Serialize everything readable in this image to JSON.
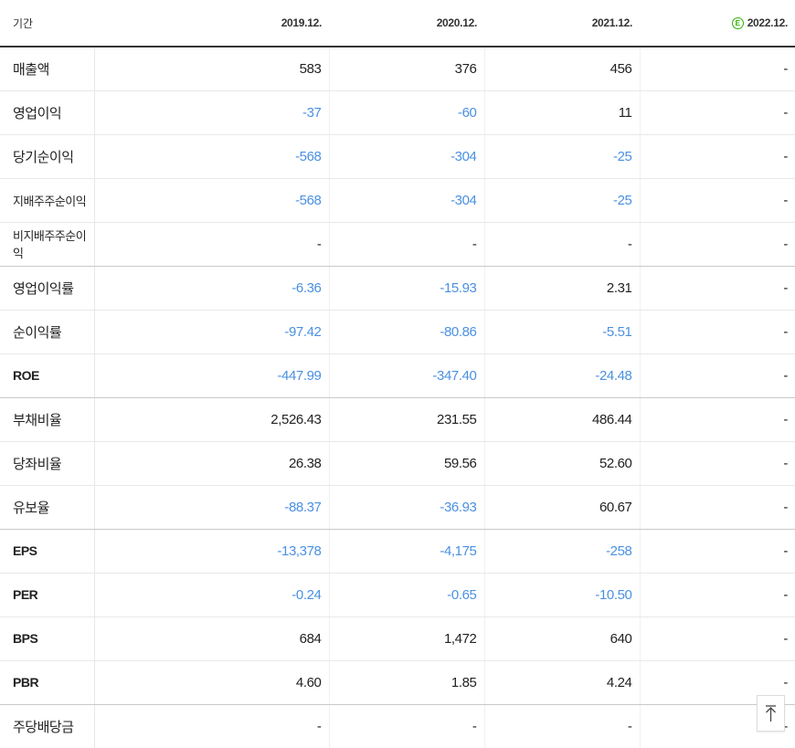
{
  "header": {
    "label": "기간",
    "periods": [
      "2019.12.",
      "2020.12.",
      "2021.12.",
      "2022.12."
    ],
    "estimate_icon": "E"
  },
  "rows": [
    {
      "label": "매출액",
      "values": [
        "583",
        "376",
        "456",
        "-"
      ]
    },
    {
      "label": "영업이익",
      "values": [
        "-37",
        "-60",
        "11",
        "-"
      ]
    },
    {
      "label": "당기순이익",
      "values": [
        "-568",
        "-304",
        "-25",
        "-"
      ]
    },
    {
      "label": "지배주주순이익",
      "values": [
        "-568",
        "-304",
        "-25",
        "-"
      ]
    },
    {
      "label": "비지배주주순이익",
      "values": [
        "-",
        "-",
        "-",
        "-"
      ]
    },
    {
      "label": "영업이익률",
      "values": [
        "-6.36",
        "-15.93",
        "2.31",
        "-"
      ]
    },
    {
      "label": "순이익률",
      "values": [
        "-97.42",
        "-80.86",
        "-5.51",
        "-"
      ]
    },
    {
      "label": "ROE",
      "values": [
        "-447.99",
        "-347.40",
        "-24.48",
        "-"
      ]
    },
    {
      "label": "부채비율",
      "values": [
        "2,526.43",
        "231.55",
        "486.44",
        "-"
      ]
    },
    {
      "label": "당좌비율",
      "values": [
        "26.38",
        "59.56",
        "52.60",
        "-"
      ]
    },
    {
      "label": "유보율",
      "values": [
        "-88.37",
        "-36.93",
        "60.67",
        "-"
      ]
    },
    {
      "label": "EPS",
      "values": [
        "-13,378",
        "-4,175",
        "-258",
        "-"
      ]
    },
    {
      "label": "PER",
      "values": [
        "-0.24",
        "-0.65",
        "-10.50",
        "-"
      ]
    },
    {
      "label": "BPS",
      "values": [
        "684",
        "1,472",
        "640",
        "-"
      ]
    },
    {
      "label": "PBR",
      "values": [
        "4.60",
        "1.85",
        "4.24",
        "-"
      ]
    },
    {
      "label": "주당배당금",
      "values": [
        "-",
        "-",
        "-",
        "-"
      ]
    }
  ],
  "top_button_icon": "arrow-up-to-top-icon",
  "colors": {
    "negative": "#4a90e2",
    "positive": "#222222",
    "estimate": "#2db400"
  }
}
